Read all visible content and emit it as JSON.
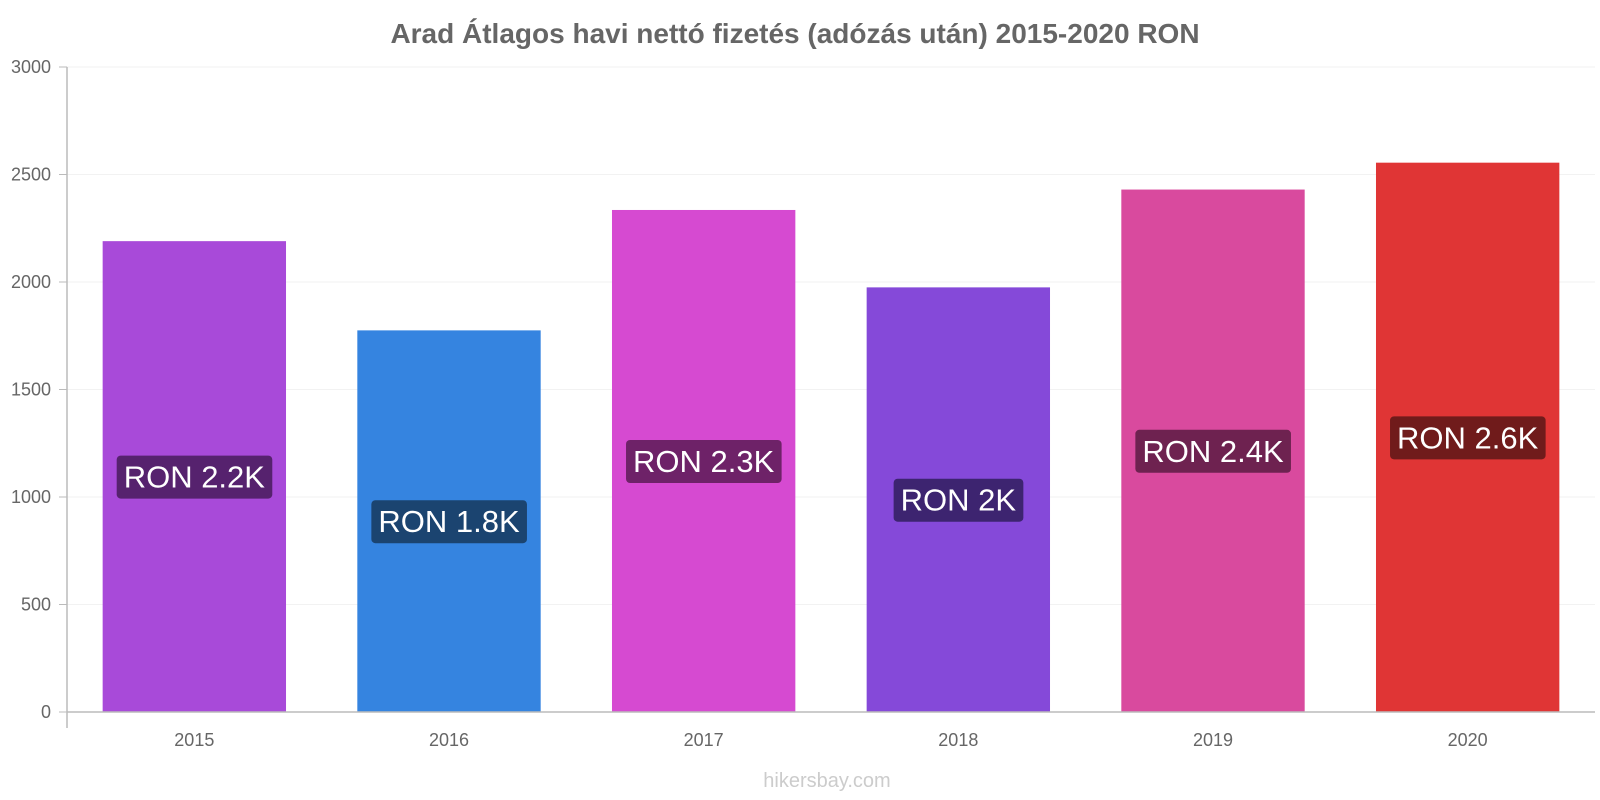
{
  "chart_data": {
    "type": "bar",
    "title": "Arad Átlagos havi nettó fizetés (adózás után) 2015-2020 RON",
    "xlabel": "",
    "ylabel": "",
    "ylim": [
      0,
      3000
    ],
    "yticks": [
      0,
      500,
      1000,
      1500,
      2000,
      2500,
      3000
    ],
    "categories": [
      "2015",
      "2016",
      "2017",
      "2018",
      "2019",
      "2020"
    ],
    "values": [
      2190,
      1775,
      2335,
      1975,
      2430,
      2555
    ],
    "data_labels": [
      "RON 2.2K",
      "RON 1.8K",
      "RON 2.3K",
      "RON 2K",
      "RON 2.4K",
      "RON 2.6K"
    ],
    "bar_colors": [
      "#a84ad9",
      "#3584e0",
      "#d64ad1",
      "#8549d9",
      "#d94a9e",
      "#e03535"
    ],
    "label_bg_colors": [
      "#56226e",
      "#1b4470",
      "#6e2268",
      "#3d2470",
      "#6e2250",
      "#701b1b"
    ],
    "grid": true,
    "legend": "none"
  },
  "watermark": "hikersbay.com"
}
